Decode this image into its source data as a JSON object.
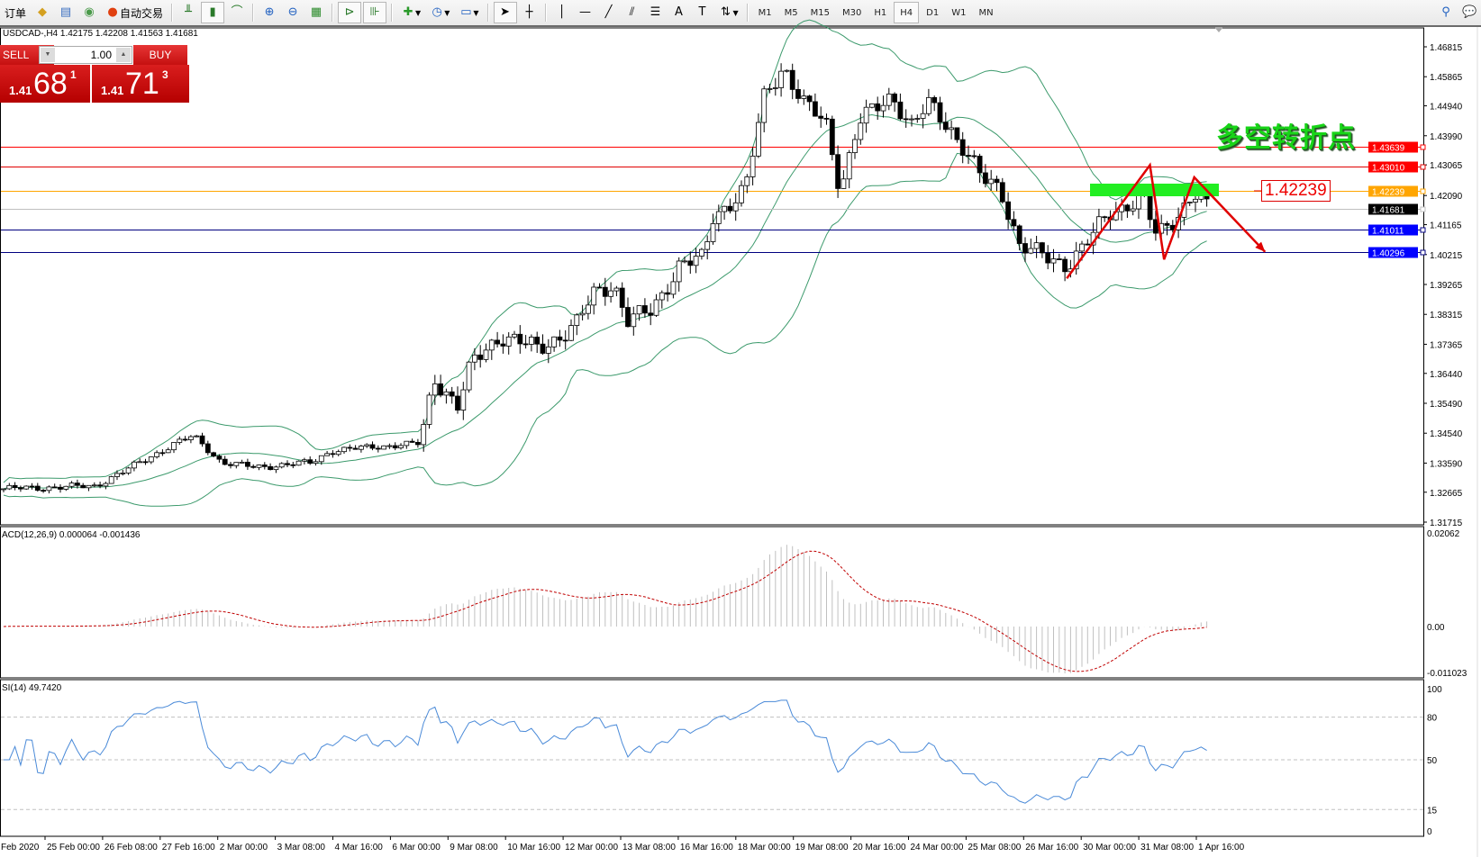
{
  "toolbar": {
    "order_label": "订单",
    "auto_trade_label": "自动交易",
    "timeframes": [
      "M1",
      "M5",
      "M15",
      "M30",
      "H1",
      "H4",
      "D1",
      "W1",
      "MN"
    ],
    "active_timeframe": "H4"
  },
  "chart": {
    "header": "USDCAD-,H4  1.42175 1.42208 1.41563 1.41681",
    "trade": {
      "sell_label": "SELL",
      "buy_label": "BUY",
      "lot": "1.00",
      "sell_prefix": "1.41",
      "sell_big": "68",
      "sell_sup": "1",
      "buy_prefix": "1.41",
      "buy_big": "71",
      "buy_sup": "3"
    },
    "annotation_text": "多空转折点",
    "annotation_price_label": "1.42239",
    "price_axis": [
      "1.46815",
      "1.45865",
      "1.44940",
      "1.43990",
      "1.43065",
      "1.42090",
      "1.41165",
      "1.40215",
      "1.39265",
      "1.38315",
      "1.37365",
      "1.36440",
      "1.35490",
      "1.34540",
      "1.33590",
      "1.32665",
      "1.31715"
    ],
    "hlines": [
      {
        "price": "1.43639",
        "color": "#ff0000",
        "label_bg": "#ff0000"
      },
      {
        "price": "1.43010",
        "color": "#e00000",
        "label_bg": "#ff0000"
      },
      {
        "price": "1.42239",
        "color": "#ffa500",
        "label_bg": "#ffa500"
      },
      {
        "price": "1.41681",
        "color": "#c0c0c0",
        "label_bg": "#000000"
      },
      {
        "price": "1.41011",
        "color": "#000080",
        "label_bg": "#0000ff"
      },
      {
        "price": "1.40296",
        "color": "#000080",
        "label_bg": "#0000ff"
      }
    ],
    "date_axis": [
      "Feb 2020",
      "25 Feb 00:00",
      "26 Feb 08:00",
      "27 Feb 16:00",
      "2 Mar 00:00",
      "3 Mar 08:00",
      "4 Mar 16:00",
      "6 Mar 00:00",
      "9 Mar 08:00",
      "10 Mar 16:00",
      "12 Mar 00:00",
      "13 Mar 08:00",
      "16 Mar 16:00",
      "18 Mar 00:00",
      "19 Mar 08:00",
      "20 Mar 16:00",
      "24 Mar 00:00",
      "25 Mar 08:00",
      "26 Mar 16:00",
      "30 Mar 00:00",
      "31 Mar 08:00",
      "1 Apr 16:00"
    ],
    "colors": {
      "band": "#3c9a6c",
      "arrow": "#e00000",
      "zone": "#22ee22",
      "macd_signal": "#c00000",
      "macd_hist": "#c0c0c0",
      "rsi": "#4a8ad8"
    }
  },
  "macd": {
    "label": "ACD(12,26,9) 0.000064 -0.001436",
    "axis": [
      "0.02062",
      "0.00",
      "-0.011023"
    ]
  },
  "rsi": {
    "label": "SI(14) 49.7420",
    "axis": [
      "100",
      "80",
      "50",
      "15",
      "0"
    ],
    "levels": [
      80,
      50,
      15
    ]
  },
  "chart_data": {
    "type": "candlestick",
    "symbol": "USDCAD-",
    "timeframe": "H4",
    "ylim": [
      1.31715,
      1.46815
    ],
    "approx_close_path": [
      1.3277,
      1.3286,
      1.3331,
      1.3421,
      1.3445,
      1.3361,
      1.3346,
      1.3361,
      1.3397,
      1.3412,
      1.3421,
      1.3631,
      1.3541,
      1.3676,
      1.3766,
      1.3721,
      1.3796,
      1.3901,
      1.3931,
      1.3811,
      1.3841,
      1.3991,
      1.4006,
      1.4141,
      1.4231,
      1.4531,
      1.4621,
      1.4501,
      1.4441,
      1.4231,
      1.4441,
      1.4531,
      1.4426,
      1.4501,
      1.4411,
      1.4261,
      1.4231,
      1.4051,
      1.4021,
      1.3991,
      1.4051,
      1.4156,
      1.4201,
      1.4081,
      1.4141,
      1.4216,
      1.4168
    ]
  }
}
